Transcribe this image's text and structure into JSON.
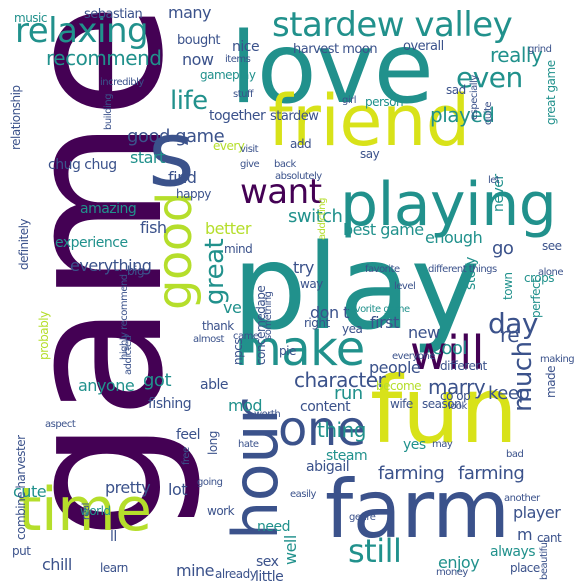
{
  "colors": {
    "background": "#ffffff",
    "palette": [
      "#440154",
      "#3b528b",
      "#21918c",
      "#5ec962",
      "#b5de2b",
      "#fde725"
    ]
  },
  "words": [
    {
      "text": "game",
      "color": "#440154"
    },
    {
      "text": "play",
      "color": "#21918c"
    },
    {
      "text": "love",
      "color": "#21918c"
    },
    {
      "text": "friend",
      "color": "#d8e219"
    },
    {
      "text": "fun",
      "color": "#d8e219"
    },
    {
      "text": "farm",
      "color": "#3b528b"
    },
    {
      "text": "time",
      "color": "#b5de2b"
    },
    {
      "text": "hour",
      "color": "#3b528b"
    },
    {
      "text": "s",
      "color": "#3b528b"
    },
    {
      "text": "playing",
      "color": "#21918c"
    },
    {
      "text": "one",
      "color": "#3b528b"
    },
    {
      "text": "make",
      "color": "#21918c"
    },
    {
      "text": "will",
      "color": "#440154"
    },
    {
      "text": "stardew valley",
      "color": "#21918c"
    },
    {
      "text": "good",
      "color": "#b5de2b"
    },
    {
      "text": "want",
      "color": "#440154"
    },
    {
      "text": "relaxing",
      "color": "#21918c"
    },
    {
      "text": "still",
      "color": "#21918c"
    },
    {
      "text": "life",
      "color": "#21918c"
    },
    {
      "text": "day",
      "color": "#3b528b"
    },
    {
      "text": "even",
      "color": "#21918c"
    },
    {
      "text": "much",
      "color": "#3b528b"
    },
    {
      "text": "farming",
      "color": "#3b528b"
    },
    {
      "text": "farming",
      "color": "#3b528b"
    },
    {
      "text": "character",
      "color": "#3b528b"
    },
    {
      "text": "recommend",
      "color": "#21918c"
    },
    {
      "text": "good game",
      "color": "#3b528b"
    },
    {
      "text": "played",
      "color": "#21918c"
    },
    {
      "text": "really",
      "color": "#21918c"
    },
    {
      "text": "now",
      "color": "#3b528b"
    },
    {
      "text": "nice",
      "color": "#3b528b"
    },
    {
      "text": "many",
      "color": "#3b528b"
    },
    {
      "text": "sebastian",
      "color": "#3b528b"
    },
    {
      "text": "harvest moon",
      "color": "#3b528b"
    },
    {
      "text": "overall",
      "color": "#3b528b"
    },
    {
      "text": "bought",
      "color": "#3b528b"
    },
    {
      "text": "together",
      "color": "#3b528b"
    },
    {
      "text": "stardew",
      "color": "#3b528b"
    },
    {
      "text": "gameplay",
      "color": "#21918c"
    },
    {
      "text": "music",
      "color": "#21918c"
    },
    {
      "text": "chug chug",
      "color": "#3b528b"
    },
    {
      "text": "start",
      "color": "#21918c"
    },
    {
      "text": "find",
      "color": "#3b528b"
    },
    {
      "text": "amazing",
      "color": "#21918c"
    },
    {
      "text": "fish",
      "color": "#3b528b"
    },
    {
      "text": "switch",
      "color": "#21918c"
    },
    {
      "text": "better",
      "color": "#b5de2b"
    },
    {
      "text": "best game",
      "color": "#21918c"
    },
    {
      "text": "enough",
      "color": "#21918c"
    },
    {
      "text": "experience",
      "color": "#21918c"
    },
    {
      "text": "everything",
      "color": "#3b528b"
    },
    {
      "text": "great",
      "color": "#21918c"
    },
    {
      "text": "go",
      "color": "#3b528b"
    },
    {
      "text": "story",
      "color": "#21918c"
    },
    {
      "text": "never",
      "color": "#21918c"
    },
    {
      "text": "try",
      "color": "#3b528b"
    },
    {
      "text": "re",
      "color": "#3b528b"
    },
    {
      "text": "don t",
      "color": "#3b528b"
    },
    {
      "text": "first",
      "color": "#3b528b"
    },
    {
      "text": "cool",
      "color": "#21918c"
    },
    {
      "text": "new",
      "color": "#3b528b"
    },
    {
      "text": "marry",
      "color": "#3b528b"
    },
    {
      "text": "keep",
      "color": "#3b528b"
    },
    {
      "text": "run",
      "color": "#21918c"
    },
    {
      "text": "got",
      "color": "#21918c"
    },
    {
      "text": "able",
      "color": "#3b528b"
    },
    {
      "text": "anyone",
      "color": "#21918c"
    },
    {
      "text": "mod",
      "color": "#21918c"
    },
    {
      "text": "content",
      "color": "#3b528b"
    },
    {
      "text": "people",
      "color": "#3b528b"
    },
    {
      "text": "fishing",
      "color": "#3b528b"
    },
    {
      "text": "feel",
      "color": "#3b528b"
    },
    {
      "text": "thing",
      "color": "#21918c"
    },
    {
      "text": "steam",
      "color": "#21918c"
    },
    {
      "text": "yes",
      "color": "#21918c"
    },
    {
      "text": "abigail",
      "color": "#3b528b"
    },
    {
      "text": "cute",
      "color": "#21918c"
    },
    {
      "text": "pretty",
      "color": "#3b528b"
    },
    {
      "text": "lot",
      "color": "#3b528b"
    },
    {
      "text": "player",
      "color": "#3b528b"
    },
    {
      "text": "need",
      "color": "#21918c"
    },
    {
      "text": "m",
      "color": "#3b528b"
    },
    {
      "text": "always",
      "color": "#21918c"
    },
    {
      "text": "chill",
      "color": "#3b528b"
    },
    {
      "text": "mine",
      "color": "#3b528b"
    },
    {
      "text": "enjoy",
      "color": "#21918c"
    },
    {
      "text": "ll",
      "color": "#3b528b"
    },
    {
      "text": "sex",
      "color": "#3b528b"
    },
    {
      "text": "well",
      "color": "#21918c"
    },
    {
      "text": "little",
      "color": "#3b528b"
    },
    {
      "text": "learn",
      "color": "#3b528b"
    },
    {
      "text": "already",
      "color": "#3b528b"
    },
    {
      "text": "world",
      "color": "#21918c"
    },
    {
      "text": "definitely",
      "color": "#3b528b"
    },
    {
      "text": "relationship",
      "color": "#3b528b"
    },
    {
      "text": "probably",
      "color": "#b5de2b"
    },
    {
      "text": "combine harvester",
      "color": "#3b528b"
    },
    {
      "text": "long",
      "color": "#3b528b"
    },
    {
      "text": "npcs",
      "color": "#3b528b"
    },
    {
      "text": "concernedape",
      "color": "#3b528b"
    },
    {
      "text": "ve",
      "color": "#21918c"
    },
    {
      "text": "see",
      "color": "#3b528b"
    },
    {
      "text": "crops",
      "color": "#21918c"
    },
    {
      "text": "town",
      "color": "#21918c"
    },
    {
      "text": "perfect",
      "color": "#21918c"
    },
    {
      "text": "different",
      "color": "#3b528b"
    },
    {
      "text": "become",
      "color": "#b5de2b"
    },
    {
      "text": "wife",
      "color": "#3b528b"
    },
    {
      "text": "season",
      "color": "#3b528b"
    },
    {
      "text": "made",
      "color": "#3b528b"
    },
    {
      "text": "great game",
      "color": "#21918c"
    },
    {
      "text": "say",
      "color": "#3b528b"
    },
    {
      "text": "add",
      "color": "#3b528b"
    },
    {
      "text": "cant",
      "color": "#3b528b"
    },
    {
      "text": "co op",
      "color": "#3b528b"
    },
    {
      "text": "every",
      "color": "#b5de2b"
    },
    {
      "text": "person",
      "color": "#21918c"
    },
    {
      "text": "sad",
      "color": "#3b528b"
    },
    {
      "text": "put",
      "color": "#3b528b"
    },
    {
      "text": "place",
      "color": "#3b528b"
    },
    {
      "text": "way",
      "color": "#3b528b"
    },
    {
      "text": "mind",
      "color": "#3b528b"
    },
    {
      "text": "happy",
      "color": "#3b528b"
    },
    {
      "text": "big",
      "color": "#3b528b"
    },
    {
      "text": "thank",
      "color": "#3b528b"
    },
    {
      "text": "pie",
      "color": "#3b528b"
    },
    {
      "text": "right",
      "color": "#3b528b"
    },
    {
      "text": "favorite game",
      "color": "#21918c"
    },
    {
      "text": "everyone",
      "color": "#3b528b"
    },
    {
      "text": "addicted",
      "color": "#3b528b"
    },
    {
      "text": "aspect",
      "color": "#3b528b"
    },
    {
      "text": "building",
      "color": "#3b528b"
    },
    {
      "text": "girl",
      "color": "#3b528b"
    },
    {
      "text": "stuff",
      "color": "#3b528b"
    },
    {
      "text": "addicting",
      "color": "#b5de2b"
    },
    {
      "text": "favorite",
      "color": "#3b528b"
    },
    {
      "text": "alone",
      "color": "#3b528b"
    },
    {
      "text": "level",
      "color": "#3b528b"
    },
    {
      "text": "almost",
      "color": "#3b528b"
    },
    {
      "text": "yea",
      "color": "#3b528b"
    },
    {
      "text": "work",
      "color": "#3b528b"
    },
    {
      "text": "genre",
      "color": "#3b528b"
    },
    {
      "text": "money",
      "color": "#3b528b"
    },
    {
      "text": "going",
      "color": "#3b528b"
    },
    {
      "text": "bad",
      "color": "#3b528b"
    },
    {
      "text": "hate",
      "color": "#3b528b"
    },
    {
      "text": "may",
      "color": "#3b528b"
    },
    {
      "text": "easily",
      "color": "#3b528b"
    },
    {
      "text": "free",
      "color": "#3b528b"
    },
    {
      "text": "real",
      "color": "#3b528b"
    },
    {
      "text": "grind",
      "color": "#3b528b"
    },
    {
      "text": "let",
      "color": "#3b528b"
    },
    {
      "text": "especially",
      "color": "#3b528b"
    },
    {
      "text": "quite",
      "color": "#3b528b"
    },
    {
      "text": "beautiful",
      "color": "#3b528b"
    },
    {
      "text": "another",
      "color": "#3b528b"
    },
    {
      "text": "different things",
      "color": "#3b528b"
    },
    {
      "text": "highly recommend",
      "color": "#3b528b"
    },
    {
      "text": "something",
      "color": "#3b528b"
    },
    {
      "text": "incredibly",
      "color": "#3b528b"
    },
    {
      "text": "items",
      "color": "#3b528b"
    },
    {
      "text": "absolutely",
      "color": "#3b528b"
    },
    {
      "text": "give",
      "color": "#3b528b"
    },
    {
      "text": "back",
      "color": "#3b528b"
    },
    {
      "text": "visit",
      "color": "#3b528b"
    },
    {
      "text": "making",
      "color": "#3b528b"
    },
    {
      "text": "look",
      "color": "#3b528b"
    },
    {
      "text": "came",
      "color": "#3b528b"
    },
    {
      "text": "worth",
      "color": "#3b528b"
    }
  ]
}
